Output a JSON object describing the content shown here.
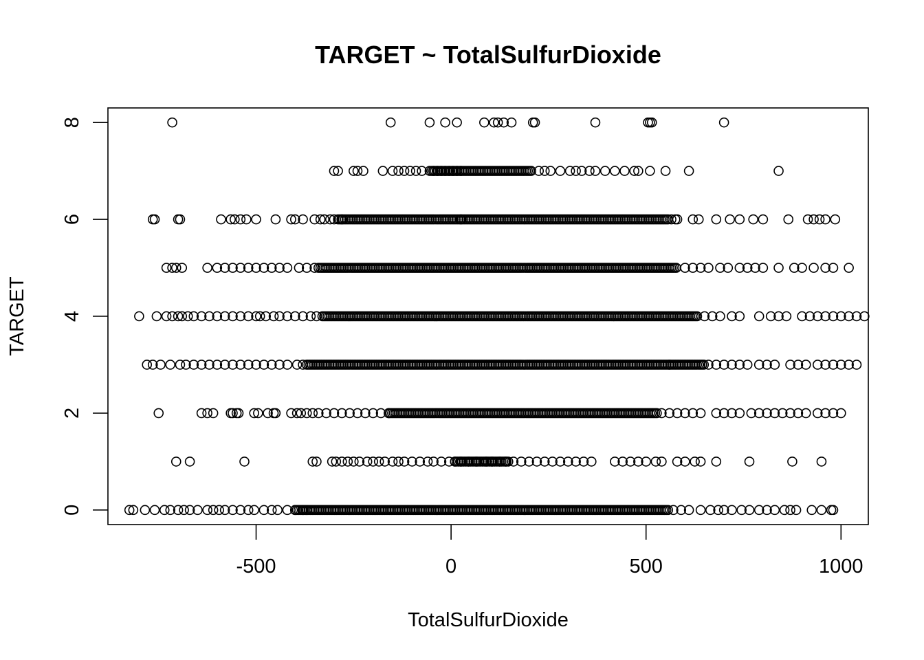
{
  "chart_data": {
    "type": "scatter",
    "title": "TARGET ~ TotalSulfurDioxide",
    "xlabel": "TotalSulfurDioxide",
    "ylabel": "TARGET",
    "xlim": [
      -880,
      1070
    ],
    "ylim": [
      -0.3,
      8.3
    ],
    "x_ticks": [
      -500,
      0,
      500,
      1000
    ],
    "x_tick_labels": [
      "-500",
      "0",
      "500",
      "1000"
    ],
    "y_ticks": [
      0,
      2,
      4,
      6,
      8
    ],
    "y_tick_labels": [
      "0",
      "2",
      "4",
      "6",
      "8"
    ],
    "grid": false,
    "legend": "none",
    "marker": "open-circle",
    "series": [
      {
        "y": 8,
        "points": [
          -715,
          -155,
          -55,
          -15,
          15,
          85,
          110,
          120,
          135,
          155,
          210,
          215,
          370,
          505,
          510,
          515,
          700
        ]
      },
      {
        "y": 7,
        "points": [
          -300,
          -290,
          -250,
          -240,
          -225,
          -175,
          -150,
          -135,
          -120,
          -105,
          -90,
          -75,
          -55,
          -45,
          -35,
          -25,
          -15,
          -5,
          5,
          15,
          25,
          225,
          240,
          255,
          280,
          305,
          320,
          335,
          355,
          370,
          395,
          420,
          445,
          470,
          480,
          510,
          550,
          610,
          840
        ],
        "dense_range": [
          -50,
          210
        ]
      },
      {
        "y": 6,
        "points": [
          -765,
          -760,
          -700,
          -695,
          -590,
          -565,
          -555,
          -540,
          -525,
          -500,
          -450,
          -410,
          -400,
          -380,
          -350,
          -335,
          -325,
          -310,
          -300,
          -280,
          25,
          565,
          575,
          580,
          620,
          635,
          680,
          715,
          740,
          775,
          800,
          865,
          915,
          930,
          945,
          960,
          985
        ],
        "dense_range": [
          -290,
          560
        ]
      },
      {
        "y": 5,
        "points": [
          -730,
          -715,
          -705,
          -690,
          -625,
          -600,
          -580,
          -560,
          -540,
          -520,
          -500,
          -480,
          -460,
          -440,
          -420,
          -390,
          -370,
          -350,
          -340,
          600,
          620,
          640,
          660,
          690,
          710,
          740,
          760,
          780,
          800,
          840,
          880,
          900,
          930,
          960,
          980,
          1020
        ],
        "dense_range": [
          -335,
          580
        ]
      },
      {
        "y": 4,
        "points": [
          -800,
          -755,
          -730,
          -715,
          -700,
          -690,
          -675,
          -660,
          -640,
          -620,
          -600,
          -580,
          -560,
          -540,
          -520,
          -500,
          -490,
          -475,
          -455,
          -440,
          -420,
          -400,
          -380,
          -360,
          -345,
          650,
          670,
          690,
          720,
          740,
          790,
          820,
          840,
          860,
          900,
          920,
          940,
          960,
          980,
          1000,
          1020,
          1040,
          1060
        ],
        "dense_range": [
          -330,
          635
        ]
      },
      {
        "y": 3,
        "points": [
          -780,
          -765,
          -745,
          -720,
          -695,
          -680,
          -660,
          -640,
          -620,
          -600,
          -580,
          -560,
          -540,
          -520,
          -500,
          -480,
          -460,
          -440,
          -420,
          -395,
          -380,
          560,
          660,
          680,
          700,
          720,
          740,
          760,
          790,
          810,
          830,
          870,
          890,
          910,
          940,
          960,
          980,
          1000,
          1020,
          1040
        ],
        "dense_range": [
          -370,
          650
        ]
      },
      {
        "y": 2,
        "points": [
          -750,
          -640,
          -625,
          -610,
          -565,
          -560,
          -550,
          -545,
          -505,
          -495,
          -470,
          -455,
          -450,
          -410,
          -395,
          -385,
          -370,
          -355,
          -340,
          -320,
          -300,
          -280,
          -260,
          -240,
          -220,
          -200,
          -180,
          -160,
          540,
          560,
          580,
          600,
          620,
          640,
          680,
          700,
          720,
          740,
          770,
          790,
          810,
          830,
          850,
          870,
          890,
          910,
          940,
          960,
          980,
          1000
        ],
        "dense_range": [
          -160,
          530
        ]
      },
      {
        "y": 1,
        "points": [
          -705,
          -670,
          -530,
          -355,
          -345,
          -305,
          -295,
          -280,
          -265,
          -250,
          -235,
          -215,
          -200,
          -185,
          -170,
          -150,
          -135,
          -120,
          -100,
          -80,
          -60,
          -45,
          -25,
          -5,
          10,
          25,
          45,
          65,
          90,
          105,
          125,
          140,
          160,
          180,
          200,
          220,
          240,
          260,
          280,
          300,
          320,
          340,
          360,
          420,
          440,
          460,
          480,
          500,
          525,
          540,
          580,
          600,
          625,
          640,
          680,
          765,
          875,
          950
        ],
        "dense_range": [
          10,
          150
        ]
      },
      {
        "y": 0,
        "points": [
          -825,
          -815,
          -785,
          -760,
          -735,
          -720,
          -700,
          -685,
          -670,
          -650,
          -625,
          -610,
          -595,
          -580,
          -560,
          -540,
          -520,
          -505,
          -480,
          -460,
          -445,
          -420,
          -400,
          -380,
          -370,
          570,
          590,
          610,
          640,
          665,
          685,
          700,
          720,
          745,
          765,
          790,
          810,
          830,
          855,
          870,
          885,
          925,
          950,
          975,
          980
        ],
        "dense_range": [
          -400,
          560
        ]
      }
    ]
  }
}
